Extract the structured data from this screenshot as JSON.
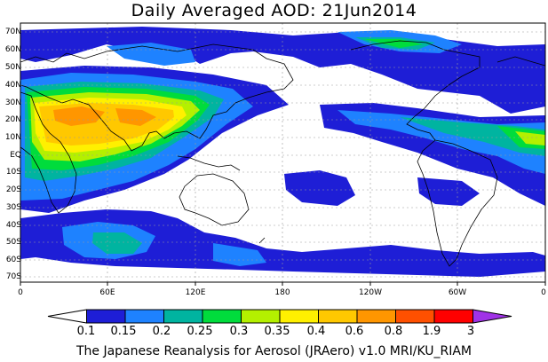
{
  "title": "Daily Averaged AOD: 21Jun2014",
  "credit": "The Japanese Reanalysis for Aerosol (JRAero) v1.0 MRI/KU_RIAM",
  "map": {
    "projection": "equirectangular",
    "lon_range": [
      0,
      360
    ],
    "lat_range": [
      -75,
      75
    ],
    "gridlines": "dashed",
    "lat_labels": [
      "70N",
      "60N",
      "50N",
      "40N",
      "30N",
      "20N",
      "10N",
      "EQ",
      "10S",
      "20S",
      "30S",
      "40S",
      "50S",
      "60S",
      "70S"
    ],
    "lon_labels": [
      "0",
      "60E",
      "120E",
      "180",
      "120W",
      "60W",
      "0"
    ]
  },
  "colorbar": {
    "labels": [
      "0.1",
      "0.15",
      "0.2",
      "0.25",
      "0.3",
      "0.35",
      "0.4",
      "0.6",
      "0.8",
      "1.9",
      "3"
    ],
    "colors": [
      "#ffffff",
      "#1e1ed6",
      "#1e82ff",
      "#00b4a0",
      "#00dc3c",
      "#b4f000",
      "#fff000",
      "#ffc800",
      "#ff9600",
      "#ff5000",
      "#ff0000",
      "#a032e6"
    ]
  }
}
